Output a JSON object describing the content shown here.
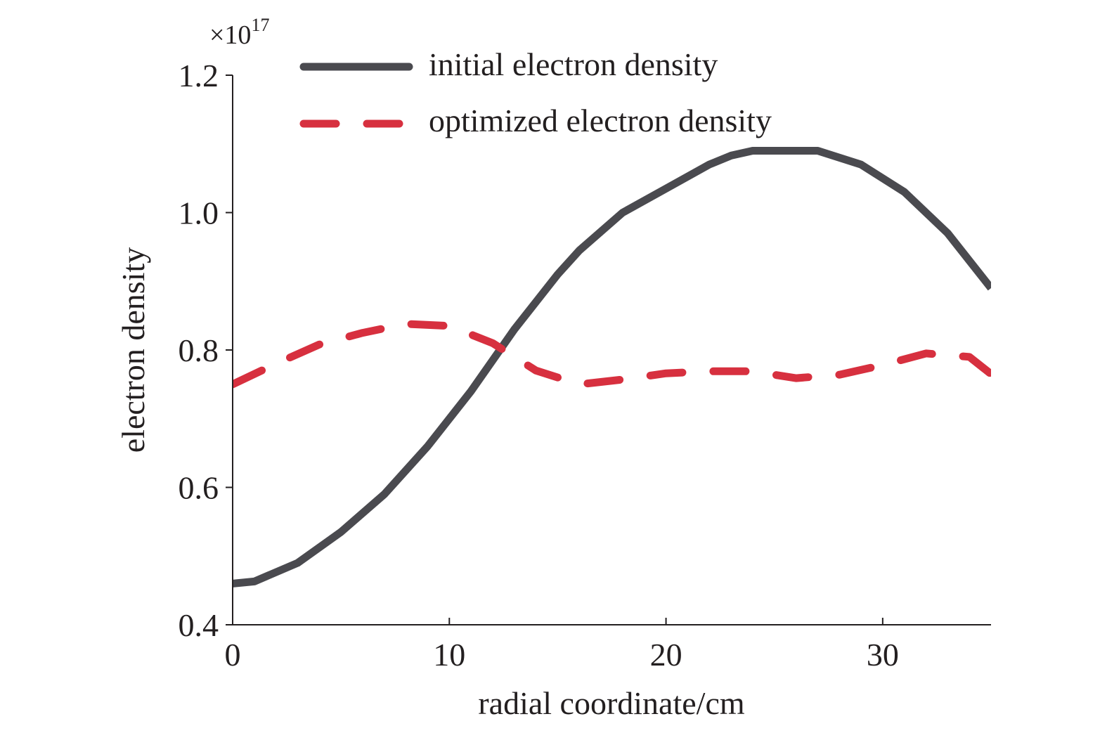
{
  "chart_data": {
    "type": "line",
    "xlabel": "radial coordinate/cm",
    "ylabel": "electron density",
    "y_multiplier": {
      "base": "×10",
      "exponent": "17"
    },
    "xlim": [
      0,
      35
    ],
    "ylim": [
      0.4,
      1.2
    ],
    "x_ticks": [
      {
        "value": 0,
        "label": "0"
      },
      {
        "value": 10,
        "label": "10"
      },
      {
        "value": 20,
        "label": "20"
      },
      {
        "value": 30,
        "label": "30"
      }
    ],
    "y_ticks": [
      {
        "value": 0.4,
        "label": "0.4"
      },
      {
        "value": 0.6,
        "label": "0.6"
      },
      {
        "value": 0.8,
        "label": "0.8"
      },
      {
        "value": 1.0,
        "label": "1.0"
      },
      {
        "value": 1.2,
        "label": "1.2"
      }
    ],
    "legend_position": "top",
    "series": [
      {
        "name": "initial electron density",
        "color": "#4a4a4f",
        "line_style": "solid",
        "x": [
          0,
          1,
          3,
          5,
          7,
          9,
          11,
          13,
          15,
          16,
          18,
          20,
          22,
          23,
          24,
          25,
          26,
          27,
          29,
          31,
          33,
          35
        ],
        "y": [
          0.46,
          0.463,
          0.49,
          0.535,
          0.59,
          0.66,
          0.74,
          0.83,
          0.91,
          0.945,
          1.0,
          1.035,
          1.07,
          1.083,
          1.09,
          1.09,
          1.09,
          1.09,
          1.07,
          1.03,
          0.97,
          0.89
        ]
      },
      {
        "name": "optimized electron density",
        "color": "#d7303f",
        "line_style": "dashed",
        "x": [
          0,
          2,
          4,
          6,
          8,
          10,
          12,
          14,
          16,
          18,
          20,
          22,
          24,
          26,
          28,
          30,
          32,
          34,
          35
        ],
        "y": [
          0.75,
          0.78,
          0.808,
          0.825,
          0.838,
          0.835,
          0.81,
          0.77,
          0.75,
          0.757,
          0.766,
          0.769,
          0.769,
          0.759,
          0.764,
          0.778,
          0.795,
          0.79,
          0.765
        ]
      }
    ]
  }
}
